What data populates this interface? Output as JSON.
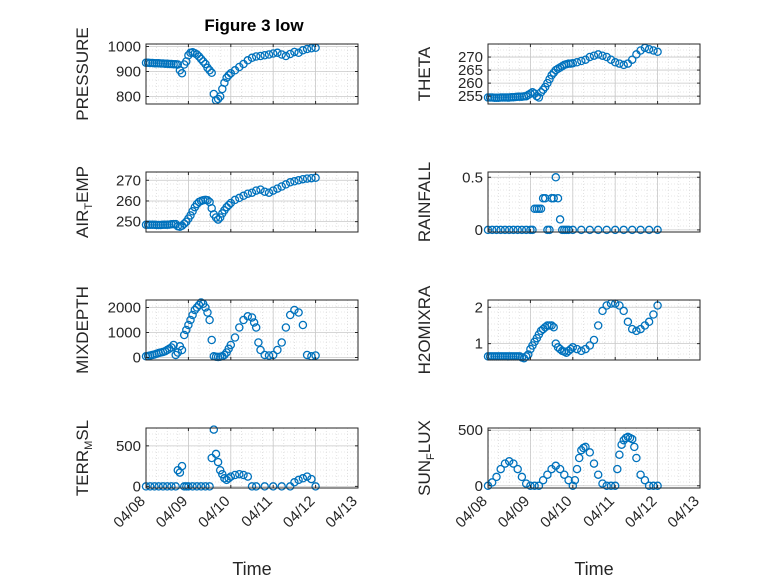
{
  "figure": {
    "title": "Figure 3 low",
    "marker_color": "#0072bd",
    "xtick_labels": [
      "04/08",
      "04/09",
      "04/10",
      "04/11",
      "04/12",
      "04/13"
    ],
    "xlabel": "Time"
  },
  "chart_data": [
    {
      "type": "scatter",
      "title": "Figure 3 low",
      "ylabel": "PRESSURE",
      "ylim": [
        770,
        1010
      ],
      "yticks": [
        800,
        900,
        1000
      ],
      "xlim": [
        0,
        5
      ],
      "xlabel": "",
      "grid": true,
      "x": [
        0,
        0.05,
        0.1,
        0.15,
        0.2,
        0.25,
        0.3,
        0.35,
        0.4,
        0.45,
        0.5,
        0.55,
        0.6,
        0.65,
        0.7,
        0.75,
        0.8,
        0.85,
        0.9,
        0.95,
        1.0,
        1.05,
        1.1,
        1.15,
        1.2,
        1.25,
        1.3,
        1.35,
        1.4,
        1.45,
        1.5,
        1.55,
        1.6,
        1.65,
        1.7,
        1.75,
        1.8,
        1.85,
        1.9,
        1.95,
        2.0,
        2.1,
        2.2,
        2.3,
        2.4,
        2.5,
        2.6,
        2.7,
        2.8,
        2.9,
        3.0,
        3.1,
        3.2,
        3.3,
        3.4,
        3.5,
        3.6,
        3.7,
        3.8,
        3.9,
        4.0
      ],
      "values": [
        935,
        935,
        934,
        934,
        933,
        933,
        933,
        932,
        932,
        931,
        931,
        930,
        930,
        929,
        929,
        928,
        905,
        893,
        928,
        940,
        965,
        975,
        977,
        973,
        968,
        960,
        950,
        940,
        930,
        915,
        905,
        895,
        810,
        785,
        790,
        800,
        830,
        855,
        875,
        885,
        893,
        905,
        918,
        930,
        945,
        955,
        960,
        962,
        965,
        968,
        972,
        975,
        968,
        962,
        970,
        978,
        975,
        985,
        990,
        993,
        995
      ]
    },
    {
      "type": "scatter",
      "ylabel": "THETA",
      "ylim": [
        252,
        275
      ],
      "yticks": [
        255,
        260,
        265,
        270
      ],
      "xlim": [
        0,
        5
      ],
      "xlabel": "",
      "grid": true,
      "x": [
        0,
        0.05,
        0.1,
        0.15,
        0.2,
        0.25,
        0.3,
        0.35,
        0.4,
        0.45,
        0.5,
        0.55,
        0.6,
        0.65,
        0.7,
        0.75,
        0.8,
        0.85,
        0.9,
        0.95,
        1.0,
        1.05,
        1.1,
        1.15,
        1.2,
        1.25,
        1.3,
        1.35,
        1.4,
        1.45,
        1.5,
        1.55,
        1.6,
        1.65,
        1.7,
        1.75,
        1.8,
        1.85,
        1.9,
        1.95,
        2.0,
        2.1,
        2.2,
        2.3,
        2.4,
        2.5,
        2.6,
        2.7,
        2.8,
        2.9,
        3.0,
        3.1,
        3.2,
        3.3,
        3.4,
        3.5,
        3.6,
        3.7,
        3.8,
        3.9,
        4.0
      ],
      "values": [
        254.5,
        254.5,
        254.5,
        254.4,
        254.4,
        254.4,
        254.5,
        254.5,
        254.5,
        254.5,
        254.5,
        254.6,
        254.6,
        254.7,
        254.8,
        254.8,
        254.8,
        254.9,
        255.0,
        255.5,
        256.0,
        256.5,
        256.0,
        255.0,
        254.5,
        256.5,
        257.5,
        258.5,
        260.0,
        261.5,
        263.0,
        264.0,
        265.0,
        265.5,
        266.0,
        266.5,
        267.0,
        267.2,
        267.5,
        267.5,
        267.6,
        268.0,
        268.5,
        269.0,
        270.0,
        270.5,
        271.0,
        270.5,
        270.0,
        269.0,
        268.0,
        267.5,
        267.0,
        267.5,
        269.0,
        271.0,
        272.5,
        273.5,
        273.0,
        272.5,
        272.0
      ]
    },
    {
      "type": "scatter",
      "ylabel": "AIR_TEMP",
      "ylim": [
        245,
        274
      ],
      "yticks": [
        250,
        260,
        270
      ],
      "xlim": [
        0,
        5
      ],
      "xlabel": "",
      "grid": true,
      "x": [
        0,
        0.05,
        0.1,
        0.15,
        0.2,
        0.25,
        0.3,
        0.35,
        0.4,
        0.45,
        0.5,
        0.55,
        0.6,
        0.65,
        0.7,
        0.75,
        0.8,
        0.85,
        0.9,
        0.95,
        1.0,
        1.05,
        1.1,
        1.15,
        1.2,
        1.25,
        1.3,
        1.35,
        1.4,
        1.45,
        1.5,
        1.55,
        1.6,
        1.65,
        1.7,
        1.75,
        1.8,
        1.85,
        1.9,
        1.95,
        2.0,
        2.1,
        2.2,
        2.3,
        2.4,
        2.5,
        2.6,
        2.7,
        2.8,
        2.9,
        3.0,
        3.1,
        3.2,
        3.3,
        3.4,
        3.5,
        3.6,
        3.7,
        3.8,
        3.9,
        4.0
      ],
      "values": [
        248.5,
        248.5,
        248.5,
        248.5,
        248.5,
        248.4,
        248.4,
        248.4,
        248.5,
        248.5,
        248.5,
        248.6,
        248.7,
        248.8,
        248.8,
        247.8,
        247.5,
        248.0,
        249.0,
        250.0,
        251.5,
        253.0,
        255.0,
        257.0,
        258.5,
        259.5,
        260.0,
        260.3,
        260.5,
        260.3,
        259.5,
        256.5,
        253.5,
        252.0,
        251.0,
        252.0,
        254.0,
        255.5,
        257.0,
        258.0,
        259.0,
        260.5,
        261.5,
        262.5,
        263.5,
        264.0,
        265.0,
        265.5,
        264.5,
        264.0,
        265.0,
        266.0,
        267.0,
        268.0,
        269.0,
        269.5,
        270.0,
        270.5,
        270.8,
        271.0,
        271.2
      ]
    },
    {
      "type": "scatter",
      "ylabel": "RAINFALL",
      "ylim": [
        -0.02,
        0.55
      ],
      "yticks": [
        0,
        0.5
      ],
      "xlim": [
        0,
        5
      ],
      "xlabel": "",
      "grid": true,
      "x": [
        0,
        0.1,
        0.2,
        0.3,
        0.4,
        0.5,
        0.6,
        0.7,
        0.8,
        0.9,
        1.0,
        1.05,
        1.1,
        1.15,
        1.2,
        1.25,
        1.3,
        1.35,
        1.4,
        1.45,
        1.5,
        1.55,
        1.6,
        1.65,
        1.7,
        1.75,
        1.8,
        1.85,
        1.9,
        2.0,
        2.2,
        2.4,
        2.6,
        2.8,
        3.0,
        3.2,
        3.4,
        3.6,
        3.8,
        4.0
      ],
      "values": [
        0,
        0,
        0,
        0,
        0,
        0,
        0,
        0,
        0,
        0,
        0,
        0,
        0.2,
        0.2,
        0.2,
        0.2,
        0.3,
        0.3,
        0,
        0,
        0.3,
        0.3,
        0.5,
        0.3,
        0.1,
        0,
        0,
        0,
        0,
        0,
        0,
        0,
        0,
        0,
        0,
        0,
        0,
        0,
        0,
        0
      ]
    },
    {
      "type": "scatter",
      "ylabel": "MIXDEPTH",
      "ylim": [
        -100,
        2300
      ],
      "yticks": [
        0,
        1000,
        2000
      ],
      "xlim": [
        0,
        5
      ],
      "xlabel": "",
      "grid": true,
      "x": [
        0,
        0.05,
        0.1,
        0.15,
        0.2,
        0.25,
        0.3,
        0.35,
        0.4,
        0.45,
        0.5,
        0.55,
        0.6,
        0.65,
        0.7,
        0.75,
        0.8,
        0.85,
        0.9,
        0.95,
        1.0,
        1.05,
        1.1,
        1.15,
        1.2,
        1.25,
        1.3,
        1.35,
        1.4,
        1.45,
        1.5,
        1.55,
        1.6,
        1.65,
        1.7,
        1.75,
        1.8,
        1.85,
        1.9,
        1.95,
        2.0,
        2.1,
        2.2,
        2.3,
        2.4,
        2.5,
        2.55,
        2.6,
        2.65,
        2.7,
        2.8,
        2.9,
        3.0,
        3.1,
        3.2,
        3.3,
        3.4,
        3.5,
        3.6,
        3.7,
        3.8,
        3.9,
        4.0
      ],
      "values": [
        50,
        60,
        80,
        100,
        120,
        150,
        180,
        200,
        220,
        250,
        300,
        350,
        400,
        500,
        100,
        200,
        450,
        300,
        900,
        1100,
        1300,
        1500,
        1700,
        1900,
        2000,
        2100,
        2200,
        2150,
        2000,
        1800,
        1500,
        700,
        50,
        30,
        20,
        30,
        50,
        100,
        200,
        350,
        500,
        800,
        1200,
        1500,
        1650,
        1600,
        1400,
        1200,
        600,
        300,
        100,
        80,
        100,
        300,
        600,
        1200,
        1700,
        1900,
        1800,
        1300,
        100,
        50,
        80
      ]
    },
    {
      "type": "scatter",
      "ylabel": "H2OMIXRA",
      "ylim": [
        0.55,
        2.2
      ],
      "yticks": [
        1,
        2
      ],
      "xlim": [
        0,
        5
      ],
      "xlabel": "",
      "grid": true,
      "x": [
        0,
        0.05,
        0.1,
        0.15,
        0.2,
        0.25,
        0.3,
        0.35,
        0.4,
        0.45,
        0.5,
        0.55,
        0.6,
        0.65,
        0.7,
        0.75,
        0.8,
        0.85,
        0.9,
        0.95,
        1.0,
        1.05,
        1.1,
        1.15,
        1.2,
        1.25,
        1.3,
        1.35,
        1.4,
        1.45,
        1.5,
        1.55,
        1.6,
        1.65,
        1.7,
        1.75,
        1.8,
        1.85,
        1.9,
        1.95,
        2.0,
        2.1,
        2.2,
        2.3,
        2.4,
        2.5,
        2.6,
        2.7,
        2.8,
        2.9,
        3.0,
        3.1,
        3.2,
        3.3,
        3.4,
        3.5,
        3.6,
        3.7,
        3.8,
        3.9,
        4.0
      ],
      "values": [
        0.65,
        0.65,
        0.65,
        0.65,
        0.65,
        0.65,
        0.65,
        0.65,
        0.65,
        0.65,
        0.65,
        0.65,
        0.65,
        0.65,
        0.65,
        0.65,
        0.62,
        0.6,
        0.65,
        0.7,
        0.85,
        0.95,
        1.05,
        1.15,
        1.25,
        1.35,
        1.4,
        1.45,
        1.5,
        1.5,
        1.5,
        1.45,
        1.0,
        0.9,
        0.85,
        0.8,
        0.78,
        0.75,
        0.8,
        0.85,
        0.9,
        0.85,
        0.8,
        0.85,
        0.95,
        1.1,
        1.5,
        1.9,
        2.05,
        2.1,
        2.1,
        2.05,
        1.9,
        1.6,
        1.4,
        1.35,
        1.4,
        1.5,
        1.6,
        1.8,
        2.05
      ]
    },
    {
      "type": "scatter",
      "ylabel": "TERR_MSL",
      "ylim": [
        -20,
        720
      ],
      "yticks": [
        0,
        500
      ],
      "xlim": [
        0,
        5
      ],
      "xlabel": "",
      "grid": true,
      "xtick_labels": [
        "04/08",
        "04/09",
        "04/10",
        "04/11",
        "04/12",
        "04/13"
      ],
      "x": [
        0,
        0.1,
        0.2,
        0.3,
        0.4,
        0.5,
        0.6,
        0.7,
        0.75,
        0.8,
        0.85,
        0.9,
        0.95,
        1.0,
        1.1,
        1.2,
        1.3,
        1.4,
        1.5,
        1.55,
        1.6,
        1.65,
        1.7,
        1.75,
        1.8,
        1.85,
        1.9,
        1.95,
        2.0,
        2.1,
        2.2,
        2.3,
        2.4,
        2.5,
        2.6,
        2.8,
        3.0,
        3.2,
        3.4,
        3.5,
        3.6,
        3.7,
        3.8,
        3.9,
        4.0
      ],
      "values": [
        0,
        0,
        0,
        0,
        0,
        0,
        0,
        0,
        200,
        170,
        250,
        0,
        0,
        0,
        0,
        0,
        0,
        0,
        0,
        350,
        700,
        400,
        300,
        200,
        150,
        100,
        80,
        100,
        120,
        140,
        150,
        140,
        120,
        0,
        0,
        0,
        0,
        0,
        0,
        50,
        80,
        100,
        120,
        90,
        0
      ]
    },
    {
      "type": "scatter",
      "ylabel": "SUN_FLUX",
      "ylim": [
        -20,
        520
      ],
      "yticks": [
        0,
        500
      ],
      "xlim": [
        0,
        5
      ],
      "xlabel": "",
      "grid": true,
      "xtick_labels": [
        "04/08",
        "04/09",
        "04/10",
        "04/11",
        "04/12",
        "04/13"
      ],
      "x": [
        0,
        0.1,
        0.2,
        0.3,
        0.4,
        0.5,
        0.6,
        0.7,
        0.8,
        0.9,
        1.0,
        1.1,
        1.2,
        1.3,
        1.4,
        1.5,
        1.6,
        1.7,
        1.8,
        1.9,
        2.0,
        2.05,
        2.1,
        2.15,
        2.2,
        2.25,
        2.3,
        2.4,
        2.5,
        2.6,
        2.7,
        2.8,
        2.9,
        3.0,
        3.05,
        3.1,
        3.15,
        3.2,
        3.25,
        3.3,
        3.35,
        3.4,
        3.45,
        3.5,
        3.6,
        3.7,
        3.8,
        3.9,
        4.0
      ],
      "values": [
        0,
        30,
        80,
        150,
        200,
        220,
        200,
        150,
        80,
        20,
        0,
        0,
        0,
        50,
        100,
        150,
        180,
        150,
        100,
        50,
        0,
        50,
        150,
        250,
        320,
        340,
        350,
        300,
        200,
        100,
        20,
        0,
        0,
        0,
        150,
        280,
        370,
        410,
        430,
        440,
        430,
        420,
        350,
        250,
        100,
        50,
        0,
        0,
        0
      ]
    }
  ]
}
